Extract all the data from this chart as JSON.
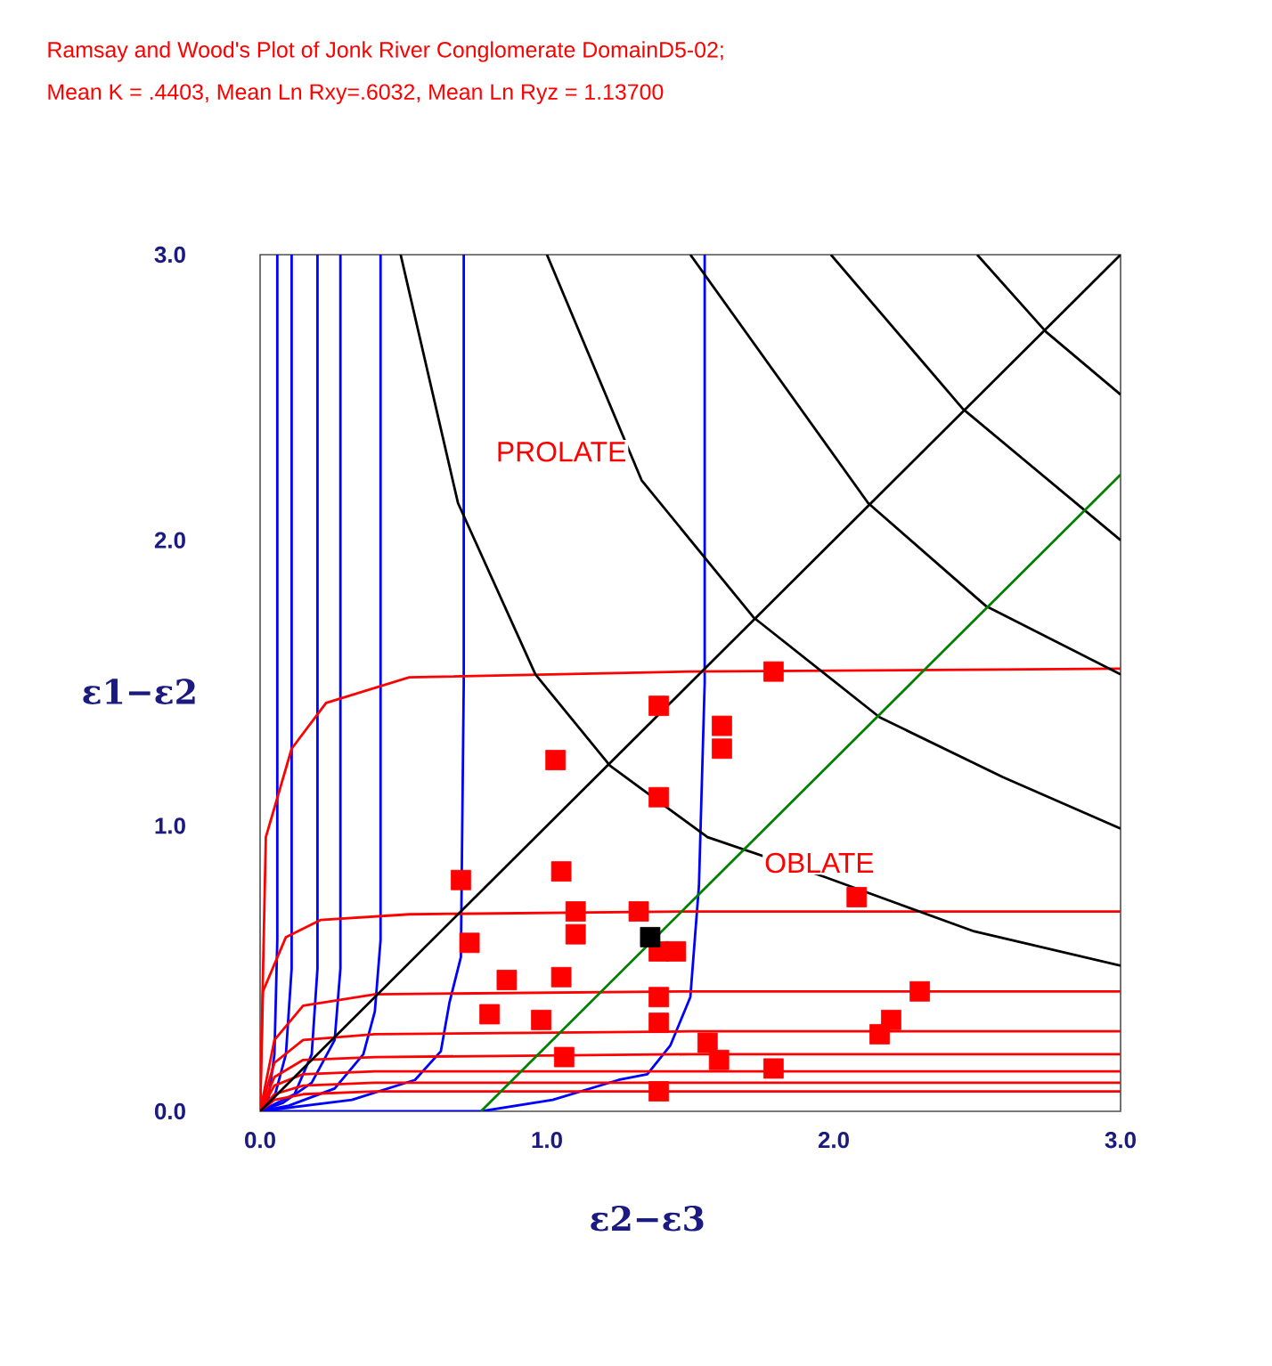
{
  "chart_data": {
    "type": "scatter",
    "title": "Ramsay and Wood's Plot of Jonk River Conglomerate DomainD5-02;",
    "subtitle": "Mean K = .4403, Mean Ln Rxy=.6032, Mean Ln Ryz = 1.13700",
    "xlabel": "ε2−ε3",
    "ylabel": "ε1−ε2",
    "xlim": [
      0,
      3
    ],
    "ylim": [
      0,
      3
    ],
    "xticks": [
      {
        "value": 0,
        "label": "0.0"
      },
      {
        "value": 1,
        "label": "1.0"
      },
      {
        "value": 2,
        "label": "2.0"
      },
      {
        "value": 3,
        "label": "3.0"
      }
    ],
    "yticks": [
      {
        "value": 0,
        "label": "0.0"
      },
      {
        "value": 1,
        "label": "1.0"
      },
      {
        "value": 2,
        "label": "2.0"
      },
      {
        "value": 3,
        "label": "3.0"
      }
    ],
    "series": [
      {
        "type": "line",
        "marker": "none",
        "color": "#0000ff",
        "x": [
          0.06,
          0.06,
          0.05,
          0.03,
          0.0
        ],
        "values": [
          3.0,
          0.6,
          0.2,
          0.05,
          0.0
        ]
      },
      {
        "type": "line",
        "marker": "none",
        "color": "#0000ff",
        "x": [
          0.11,
          0.11,
          0.09,
          0.05,
          0.0
        ],
        "values": [
          3.0,
          0.5,
          0.2,
          0.05,
          0.0
        ]
      },
      {
        "type": "line",
        "marker": "none",
        "color": "#0000ff",
        "x": [
          0.2,
          0.2,
          0.18,
          0.12,
          0.0
        ],
        "values": [
          3.0,
          0.5,
          0.2,
          0.06,
          0.0
        ]
      },
      {
        "type": "line",
        "marker": "none",
        "color": "#0000ff",
        "x": [
          0.28,
          0.28,
          0.26,
          0.18,
          0.08,
          0.0
        ],
        "values": [
          3.0,
          0.5,
          0.25,
          0.1,
          0.03,
          0.0
        ]
      },
      {
        "type": "line",
        "marker": "none",
        "color": "#0000ff",
        "x": [
          0.42,
          0.42,
          0.4,
          0.36,
          0.26,
          0.1,
          0.0
        ],
        "values": [
          3.0,
          0.6,
          0.35,
          0.2,
          0.08,
          0.02,
          0.0
        ]
      },
      {
        "type": "line",
        "marker": "none",
        "color": "#0000ff",
        "x": [
          0.71,
          0.71,
          0.7,
          0.66,
          0.63,
          0.54,
          0.32,
          0.0
        ],
        "values": [
          3.0,
          1.5,
          0.54,
          0.38,
          0.21,
          0.11,
          0.04,
          0.0
        ]
      },
      {
        "type": "line",
        "marker": "none",
        "color": "#0000ff",
        "x": [
          1.55,
          1.55,
          1.53,
          1.5,
          1.43,
          1.35,
          1.25,
          1.02,
          0.77,
          0.0
        ],
        "values": [
          3.0,
          1.5,
          0.79,
          0.4,
          0.23,
          0.13,
          0.11,
          0.04,
          0.0,
          0.0
        ]
      },
      {
        "type": "line",
        "marker": "none",
        "color": "#ff0000",
        "x": [
          0.0,
          0.02,
          0.11,
          0.23,
          0.52,
          1.5,
          3.0
        ],
        "values": [
          0.0,
          0.96,
          1.27,
          1.43,
          1.52,
          1.54,
          1.55
        ]
      },
      {
        "type": "line",
        "marker": "none",
        "color": "#ff0000",
        "x": [
          0.0,
          0.01,
          0.09,
          0.21,
          0.52,
          1.5,
          3.0
        ],
        "values": [
          0.0,
          0.42,
          0.61,
          0.67,
          0.69,
          0.7,
          0.7
        ]
      },
      {
        "type": "line",
        "marker": "none",
        "color": "#ff0000",
        "x": [
          0.0,
          0.05,
          0.15,
          0.4,
          1.5,
          3.0
        ],
        "values": [
          0.0,
          0.25,
          0.37,
          0.41,
          0.42,
          0.42
        ]
      },
      {
        "type": "line",
        "marker": "none",
        "color": "#ff0000",
        "x": [
          0.0,
          0.05,
          0.15,
          0.4,
          1.5,
          3.0
        ],
        "values": [
          0.0,
          0.17,
          0.25,
          0.27,
          0.28,
          0.28
        ]
      },
      {
        "type": "line",
        "marker": "none",
        "color": "#ff0000",
        "x": [
          0.0,
          0.05,
          0.15,
          0.4,
          1.5,
          3.0
        ],
        "values": [
          0.0,
          0.12,
          0.18,
          0.19,
          0.2,
          0.2
        ]
      },
      {
        "type": "line",
        "marker": "none",
        "color": "#ff0000",
        "x": [
          0.0,
          0.05,
          0.15,
          0.4,
          1.5,
          3.0
        ],
        "values": [
          0.0,
          0.09,
          0.13,
          0.14,
          0.14,
          0.14
        ]
      },
      {
        "type": "line",
        "marker": "none",
        "color": "#ff0000",
        "x": [
          0.0,
          0.05,
          0.15,
          0.4,
          1.5,
          3.0
        ],
        "values": [
          0.0,
          0.06,
          0.09,
          0.1,
          0.1,
          0.1
        ]
      },
      {
        "type": "line",
        "marker": "none",
        "color": "#ff0000",
        "x": [
          0.0,
          0.05,
          0.15,
          0.4,
          1.5,
          3.0
        ],
        "values": [
          0.0,
          0.04,
          0.06,
          0.07,
          0.07,
          0.07
        ]
      },
      {
        "type": "line",
        "marker": "none",
        "color": "#000000",
        "x": [
          0.49,
          0.69,
          0.96,
          1.22,
          1.56,
          1.97,
          2.49,
          3.0
        ],
        "values": [
          3.0,
          2.13,
          1.53,
          1.21,
          0.96,
          0.82,
          0.63,
          0.51
        ]
      },
      {
        "type": "line",
        "marker": "none",
        "color": "#000000",
        "x": [
          1.0,
          1.33,
          1.72,
          2.16,
          2.59,
          3.0
        ],
        "values": [
          3.0,
          2.21,
          1.73,
          1.38,
          1.17,
          0.99
        ]
      },
      {
        "type": "line",
        "marker": "none",
        "color": "#000000",
        "x": [
          1.5,
          2.12,
          2.53,
          3.0
        ],
        "values": [
          3.0,
          2.13,
          1.77,
          1.53
        ]
      },
      {
        "type": "line",
        "marker": "none",
        "color": "#000000",
        "x": [
          1.99,
          2.45,
          3.0
        ],
        "values": [
          3.0,
          2.46,
          2.0
        ]
      },
      {
        "type": "line",
        "marker": "none",
        "color": "#000000",
        "x": [
          2.5,
          2.74,
          3.0
        ],
        "values": [
          3.0,
          2.73,
          2.51
        ]
      },
      {
        "type": "line",
        "marker": "none",
        "color": "#000000",
        "x": [
          0,
          3
        ],
        "values": [
          0,
          3
        ]
      },
      {
        "type": "line",
        "marker": "none",
        "color": "#008000",
        "x": [
          0.77,
          3.0
        ],
        "values": [
          0.0,
          2.23
        ]
      },
      {
        "marker": "square",
        "color": "#ff0000",
        "x": [
          1.79,
          1.39,
          1.61,
          1.61,
          1.03,
          1.39,
          0.7,
          1.05,
          2.08,
          1.1,
          1.1,
          1.32,
          1.39,
          1.45,
          0.73,
          0.86,
          1.05,
          2.3,
          1.39,
          1.39,
          0.8,
          0.98,
          2.2,
          2.16,
          1.56,
          1.6,
          1.06,
          1.79,
          1.39
        ],
        "values": [
          1.54,
          1.42,
          1.35,
          1.27,
          1.23,
          1.1,
          0.81,
          0.84,
          0.75,
          0.7,
          0.62,
          0.7,
          0.56,
          0.56,
          0.59,
          0.46,
          0.47,
          0.42,
          0.4,
          0.31,
          0.34,
          0.32,
          0.32,
          0.27,
          0.24,
          0.18,
          0.19,
          0.15,
          0.07
        ]
      },
      {
        "marker": "square",
        "color": "#000000",
        "x": [
          1.36
        ],
        "values": [
          0.61
        ]
      }
    ],
    "annotations": [
      "PROLATE",
      "OBLATE"
    ]
  }
}
